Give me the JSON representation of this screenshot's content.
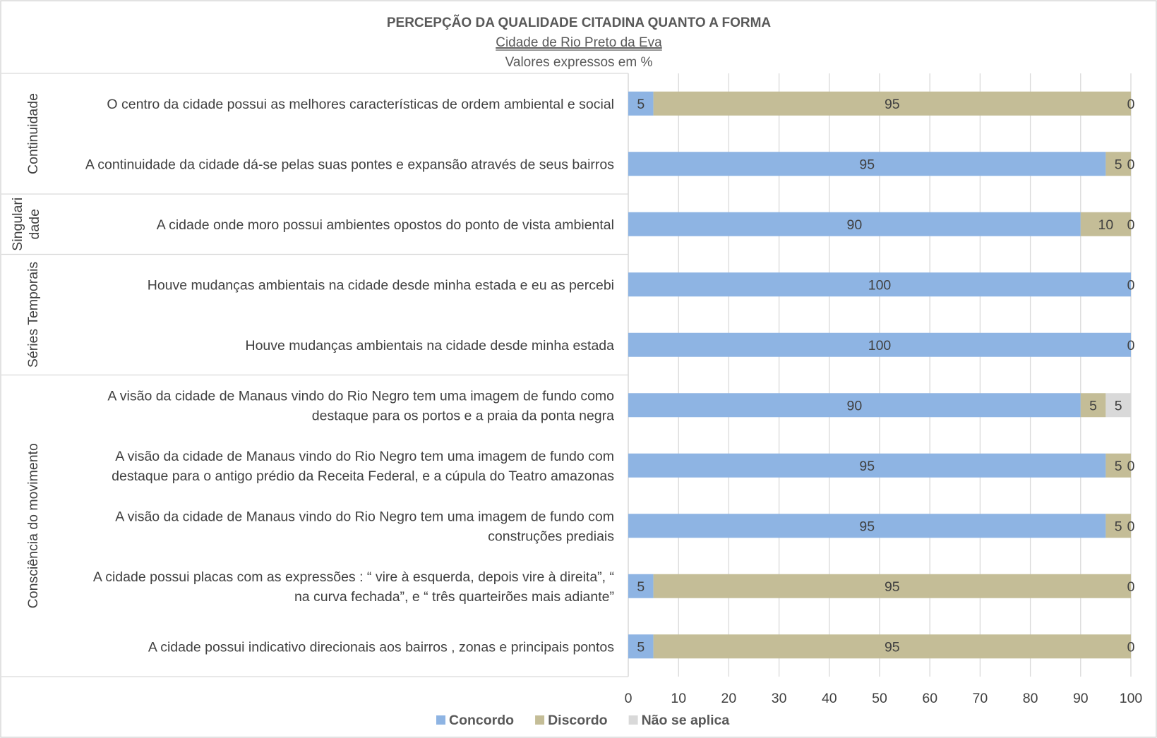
{
  "chart_data": {
    "type": "bar",
    "orientation": "horizontal",
    "stacked": true,
    "title": "PERCEPÇÃO DA QUALIDADE CITADINA QUANTO A FORMA",
    "subtitle": "Cidade de Rio Preto da Eva",
    "subtitle2": "Valores expressos em %",
    "xlim": [
      0,
      100
    ],
    "xticks": [
      "0",
      "10",
      "20",
      "30",
      "40",
      "50",
      "60",
      "70",
      "80",
      "90",
      "100"
    ],
    "grid": true,
    "legend_position": "bottom",
    "groups": [
      {
        "label": "Continuidade",
        "rows": [
          0,
          1
        ]
      },
      {
        "label": "Singulari dade",
        "lines": [
          "Singulari",
          "dade"
        ],
        "rows": [
          2
        ]
      },
      {
        "label": "Séries Temporais",
        "rows": [
          3,
          4
        ]
      },
      {
        "label": "Consciência do movimento",
        "rows": [
          5,
          6,
          7,
          8,
          9
        ]
      }
    ],
    "categories": [
      {
        "lines": [
          "O centro da cidade  possui as melhores características de ordem ambiental e social"
        ]
      },
      {
        "lines": [
          "A continuidade da cidade dá-se pelas suas pontes e expansão através de seus bairros"
        ]
      },
      {
        "lines": [
          "A cidade onde moro possui ambientes opostos do ponto de vista ambiental"
        ]
      },
      {
        "lines": [
          "Houve mudanças ambientais na cidade desde minha estada e eu as percebi"
        ]
      },
      {
        "lines": [
          "Houve  mudanças ambientais na cidade desde minha estada"
        ]
      },
      {
        "lines": [
          "A visão da cidade de Manaus vindo do Rio Negro tem uma imagem de fundo como",
          "destaque para os portos e a praia da ponta negra"
        ]
      },
      {
        "lines": [
          "A visão da cidade de Manaus vindo do Rio Negro tem uma imagem de fundo com",
          "destaque para o antigo prédio da Receita Federal, e a cúpula do Teatro amazonas"
        ]
      },
      {
        "lines": [
          "A visão da cidade de Manaus vindo do Rio Negro tem uma imagem de fundo com",
          "construções prediais"
        ]
      },
      {
        "lines": [
          "A cidade possui placas com as expressões : “ vire à esquerda, depois vire à direita”, “",
          "na curva fechada”, e “ três quarteirões mais adiante”"
        ]
      },
      {
        "lines": [
          "A cidade possui indicativo direcionais aos bairros , zonas e principais pontos"
        ]
      }
    ],
    "series": [
      {
        "name": "Concordo",
        "color": "#8eb4e3",
        "values": [
          5,
          95,
          90,
          100,
          100,
          90,
          95,
          95,
          5,
          5
        ]
      },
      {
        "name": "Discordo",
        "color": "#c4bd97",
        "values": [
          95,
          5,
          10,
          0,
          0,
          5,
          5,
          5,
          95,
          95
        ]
      },
      {
        "name": "Não se aplica",
        "color": "#d9d9d9",
        "values": [
          0,
          0,
          0,
          0,
          0,
          5,
          0,
          0,
          0,
          0
        ]
      }
    ],
    "data_labels": [
      [
        "5",
        "95",
        "0"
      ],
      [
        "95",
        "5",
        "0"
      ],
      [
        "90",
        "10",
        "0"
      ],
      [
        "100",
        "",
        "0"
      ],
      [
        "100",
        "",
        "0"
      ],
      [
        "90",
        "5",
        "5"
      ],
      [
        "95",
        "5",
        "0"
      ],
      [
        "95",
        "5",
        "0"
      ],
      [
        "5",
        "95",
        "0"
      ],
      [
        "5",
        "95",
        "0"
      ]
    ],
    "colors": {
      "gridline": "#d9d9d9",
      "frame": "#d9d9d9",
      "text": "#404040"
    }
  }
}
